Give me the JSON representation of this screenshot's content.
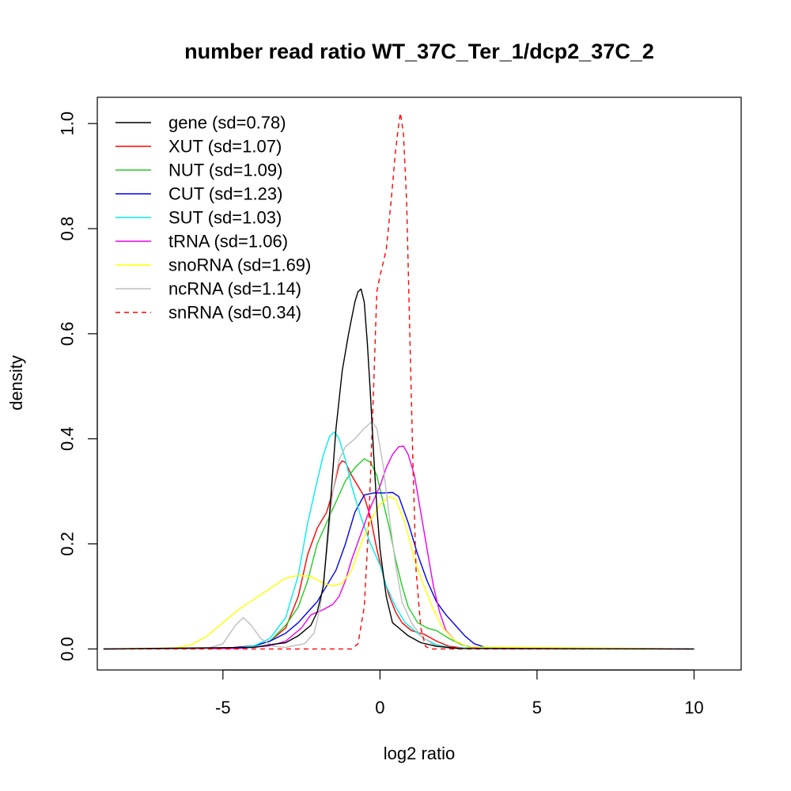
{
  "chart_data": {
    "type": "line",
    "title": "number read ratio WT_37C_Ter_1/dcp2_37C_2",
    "xlabel": "log2 ratio",
    "ylabel": "density",
    "xlim": [
      -9,
      11.5
    ],
    "ylim": [
      -0.04,
      1.05
    ],
    "xticks": [
      -5,
      0,
      5,
      10
    ],
    "yticks": [
      0.0,
      0.2,
      0.4,
      0.6,
      0.8,
      1.0
    ],
    "xtick_labels": [
      "-5",
      "0",
      "5",
      "10"
    ],
    "ytick_labels": [
      "0.0",
      "0.2",
      "0.4",
      "0.6",
      "0.8",
      "1.0"
    ],
    "grid": false,
    "legend_position": "top-left",
    "series": [
      {
        "name": "gene (sd=0.78)",
        "color": "#000000",
        "dash": false,
        "points": [
          [
            -8.8,
            0
          ],
          [
            -4,
            0.003
          ],
          [
            -3.5,
            0.008
          ],
          [
            -3,
            0.012
          ],
          [
            -2.6,
            0.025
          ],
          [
            -2.2,
            0.045
          ],
          [
            -2.0,
            0.07
          ],
          [
            -1.8,
            0.12
          ],
          [
            -1.6,
            0.26
          ],
          [
            -1.4,
            0.42
          ],
          [
            -1.2,
            0.53
          ],
          [
            -1.0,
            0.6
          ],
          [
            -0.8,
            0.66
          ],
          [
            -0.7,
            0.68
          ],
          [
            -0.6,
            0.685
          ],
          [
            -0.5,
            0.66
          ],
          [
            -0.4,
            0.58
          ],
          [
            -0.3,
            0.48
          ],
          [
            -0.2,
            0.37
          ],
          [
            -0.1,
            0.27
          ],
          [
            0.0,
            0.19
          ],
          [
            0.2,
            0.1
          ],
          [
            0.4,
            0.05
          ],
          [
            0.6,
            0.04
          ],
          [
            0.9,
            0.025
          ],
          [
            1.3,
            0.012
          ],
          [
            1.8,
            0.005
          ],
          [
            2.5,
            0.001
          ],
          [
            10,
            0
          ]
        ]
      },
      {
        "name": "XUT (sd=1.07)",
        "color": "#ff0000",
        "dash": false,
        "points": [
          [
            -8.8,
            0
          ],
          [
            -5,
            0.001
          ],
          [
            -4,
            0.006
          ],
          [
            -3.5,
            0.015
          ],
          [
            -3.0,
            0.04
          ],
          [
            -2.6,
            0.1
          ],
          [
            -2.3,
            0.18
          ],
          [
            -2.0,
            0.23
          ],
          [
            -1.7,
            0.26
          ],
          [
            -1.5,
            0.3
          ],
          [
            -1.3,
            0.35
          ],
          [
            -1.2,
            0.358
          ],
          [
            -1.1,
            0.355
          ],
          [
            -0.9,
            0.33
          ],
          [
            -0.7,
            0.31
          ],
          [
            -0.5,
            0.29
          ],
          [
            -0.3,
            0.25
          ],
          [
            -0.1,
            0.19
          ],
          [
            0.1,
            0.14
          ],
          [
            0.3,
            0.1
          ],
          [
            0.5,
            0.07
          ],
          [
            0.7,
            0.05
          ],
          [
            1.0,
            0.035
          ],
          [
            1.4,
            0.028
          ],
          [
            1.8,
            0.015
          ],
          [
            2.2,
            0.005
          ],
          [
            2.8,
            0.001
          ],
          [
            10,
            0
          ]
        ]
      },
      {
        "name": "NUT (sd=1.09)",
        "color": "#22cc22",
        "dash": false,
        "points": [
          [
            -8.8,
            0
          ],
          [
            -5,
            0.001
          ],
          [
            -4,
            0.005
          ],
          [
            -3.5,
            0.015
          ],
          [
            -3.0,
            0.045
          ],
          [
            -2.6,
            0.08
          ],
          [
            -2.3,
            0.13
          ],
          [
            -2.0,
            0.2
          ],
          [
            -1.7,
            0.24
          ],
          [
            -1.4,
            0.28
          ],
          [
            -1.1,
            0.32
          ],
          [
            -0.8,
            0.345
          ],
          [
            -0.5,
            0.362
          ],
          [
            -0.3,
            0.355
          ],
          [
            -0.1,
            0.33
          ],
          [
            0.1,
            0.28
          ],
          [
            0.3,
            0.23
          ],
          [
            0.5,
            0.17
          ],
          [
            0.7,
            0.12
          ],
          [
            0.9,
            0.08
          ],
          [
            1.2,
            0.05
          ],
          [
            1.5,
            0.04
          ],
          [
            1.8,
            0.035
          ],
          [
            2.2,
            0.02
          ],
          [
            2.6,
            0.008
          ],
          [
            3.0,
            0.002
          ],
          [
            10,
            0
          ]
        ]
      },
      {
        "name": "CUT (sd=1.23)",
        "color": "#0000ee",
        "dash": false,
        "points": [
          [
            -8.8,
            0
          ],
          [
            -5,
            0.001
          ],
          [
            -4,
            0.006
          ],
          [
            -3.5,
            0.015
          ],
          [
            -3.0,
            0.03
          ],
          [
            -2.6,
            0.05
          ],
          [
            -2.3,
            0.07
          ],
          [
            -2.0,
            0.09
          ],
          [
            -1.7,
            0.12
          ],
          [
            -1.4,
            0.15
          ],
          [
            -1.1,
            0.2
          ],
          [
            -0.8,
            0.26
          ],
          [
            -0.5,
            0.293
          ],
          [
            -0.2,
            0.297
          ],
          [
            0.1,
            0.297
          ],
          [
            0.4,
            0.298
          ],
          [
            0.6,
            0.29
          ],
          [
            0.9,
            0.24
          ],
          [
            1.2,
            0.18
          ],
          [
            1.5,
            0.13
          ],
          [
            1.8,
            0.09
          ],
          [
            2.1,
            0.065
          ],
          [
            2.4,
            0.045
          ],
          [
            2.7,
            0.025
          ],
          [
            3.0,
            0.01
          ],
          [
            3.4,
            0.002
          ],
          [
            10,
            0
          ]
        ]
      },
      {
        "name": "SUT (sd=1.03)",
        "color": "#00eeee",
        "dash": false,
        "points": [
          [
            -8.8,
            0
          ],
          [
            -4.5,
            0.002
          ],
          [
            -4,
            0.006
          ],
          [
            -3.5,
            0.02
          ],
          [
            -3.0,
            0.06
          ],
          [
            -2.6,
            0.14
          ],
          [
            -2.3,
            0.24
          ],
          [
            -2.0,
            0.32
          ],
          [
            -1.8,
            0.37
          ],
          [
            -1.6,
            0.405
          ],
          [
            -1.45,
            0.413
          ],
          [
            -1.3,
            0.4
          ],
          [
            -1.1,
            0.36
          ],
          [
            -0.9,
            0.31
          ],
          [
            -0.6,
            0.25
          ],
          [
            -0.3,
            0.2
          ],
          [
            0.0,
            0.16
          ],
          [
            0.2,
            0.12
          ],
          [
            0.5,
            0.08
          ],
          [
            0.8,
            0.05
          ],
          [
            1.1,
            0.035
          ],
          [
            1.4,
            0.02
          ],
          [
            1.8,
            0.008
          ],
          [
            2.3,
            0.002
          ],
          [
            10,
            0
          ]
        ]
      },
      {
        "name": "tRNA (sd=1.06)",
        "color": "#ee00ee",
        "dash": false,
        "points": [
          [
            -8.8,
            0
          ],
          [
            -4.5,
            0.001
          ],
          [
            -3.5,
            0.006
          ],
          [
            -3.0,
            0.015
          ],
          [
            -2.5,
            0.04
          ],
          [
            -2.2,
            0.065
          ],
          [
            -1.8,
            0.075
          ],
          [
            -1.5,
            0.085
          ],
          [
            -1.3,
            0.1
          ],
          [
            -1.1,
            0.13
          ],
          [
            -0.9,
            0.17
          ],
          [
            -0.6,
            0.22
          ],
          [
            -0.3,
            0.27
          ],
          [
            0.0,
            0.31
          ],
          [
            0.2,
            0.345
          ],
          [
            0.4,
            0.37
          ],
          [
            0.6,
            0.385
          ],
          [
            0.75,
            0.386
          ],
          [
            0.9,
            0.37
          ],
          [
            1.1,
            0.33
          ],
          [
            1.3,
            0.26
          ],
          [
            1.5,
            0.19
          ],
          [
            1.7,
            0.12
          ],
          [
            1.9,
            0.07
          ],
          [
            2.1,
            0.035
          ],
          [
            2.4,
            0.015
          ],
          [
            2.8,
            0.004
          ],
          [
            3.2,
            0.001
          ],
          [
            10,
            0
          ]
        ]
      },
      {
        "name": "snoRNA (sd=1.69)",
        "color": "#ffff00",
        "dash": false,
        "points": [
          [
            -8.8,
            0
          ],
          [
            -6.5,
            0.002
          ],
          [
            -6.0,
            0.008
          ],
          [
            -5.5,
            0.025
          ],
          [
            -5.0,
            0.05
          ],
          [
            -4.5,
            0.075
          ],
          [
            -4.0,
            0.095
          ],
          [
            -3.5,
            0.115
          ],
          [
            -3.0,
            0.135
          ],
          [
            -2.6,
            0.14
          ],
          [
            -2.2,
            0.138
          ],
          [
            -1.8,
            0.125
          ],
          [
            -1.5,
            0.12
          ],
          [
            -1.2,
            0.125
          ],
          [
            -0.9,
            0.15
          ],
          [
            -0.6,
            0.2
          ],
          [
            -0.3,
            0.245
          ],
          [
            0.0,
            0.275
          ],
          [
            0.3,
            0.29
          ],
          [
            0.5,
            0.285
          ],
          [
            0.8,
            0.24
          ],
          [
            1.1,
            0.17
          ],
          [
            1.4,
            0.12
          ],
          [
            1.7,
            0.075
          ],
          [
            2.0,
            0.04
          ],
          [
            2.4,
            0.015
          ],
          [
            2.8,
            0.004
          ],
          [
            10,
            0
          ]
        ]
      },
      {
        "name": "ncRNA (sd=1.14)",
        "color": "#bebebe",
        "dash": false,
        "points": [
          [
            -8.8,
            0
          ],
          [
            -5.5,
            0.001
          ],
          [
            -5.0,
            0.01
          ],
          [
            -4.6,
            0.045
          ],
          [
            -4.35,
            0.06
          ],
          [
            -4.1,
            0.045
          ],
          [
            -3.8,
            0.02
          ],
          [
            -3.4,
            0.005
          ],
          [
            -3.0,
            0.003
          ],
          [
            -2.4,
            0.01
          ],
          [
            -2.1,
            0.03
          ],
          [
            -1.9,
            0.08
          ],
          [
            -1.7,
            0.18
          ],
          [
            -1.5,
            0.3
          ],
          [
            -1.3,
            0.36
          ],
          [
            -1.1,
            0.385
          ],
          [
            -0.8,
            0.4
          ],
          [
            -0.5,
            0.42
          ],
          [
            -0.25,
            0.433
          ],
          [
            -0.1,
            0.42
          ],
          [
            0.1,
            0.35
          ],
          [
            0.3,
            0.25
          ],
          [
            0.5,
            0.16
          ],
          [
            0.7,
            0.09
          ],
          [
            1.0,
            0.05
          ],
          [
            1.3,
            0.025
          ],
          [
            1.7,
            0.008
          ],
          [
            2.2,
            0.001
          ],
          [
            10,
            0
          ]
        ]
      },
      {
        "name": "snRNA (sd=0.34)",
        "color": "#ff0000",
        "dash": true,
        "points": [
          [
            -8.8,
            0
          ],
          [
            -0.9,
            0
          ],
          [
            -0.7,
            0.01
          ],
          [
            -0.5,
            0.08
          ],
          [
            -0.35,
            0.25
          ],
          [
            -0.2,
            0.5
          ],
          [
            -0.1,
            0.68
          ],
          [
            0.0,
            0.71
          ],
          [
            0.2,
            0.76
          ],
          [
            0.35,
            0.85
          ],
          [
            0.5,
            0.95
          ],
          [
            0.6,
            1.0
          ],
          [
            0.65,
            1.02
          ],
          [
            0.75,
            0.98
          ],
          [
            0.85,
            0.85
          ],
          [
            0.95,
            0.6
          ],
          [
            1.05,
            0.35
          ],
          [
            1.15,
            0.15
          ],
          [
            1.3,
            0.04
          ],
          [
            1.45,
            0.005
          ],
          [
            1.6,
            0
          ],
          [
            10,
            0
          ]
        ]
      }
    ]
  }
}
